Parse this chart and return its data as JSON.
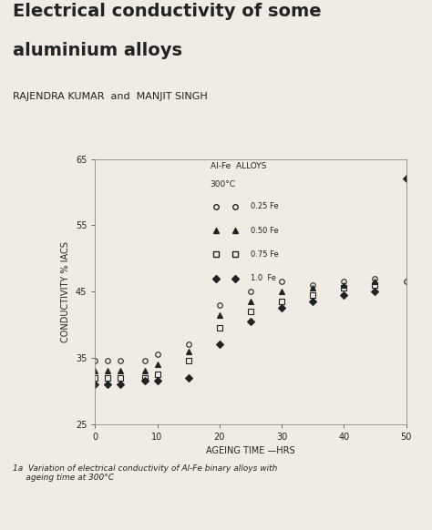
{
  "title_line1": "Electrical conductivity of some",
  "title_line2": "aluminium alloys",
  "authors": "RAJENDRA KUMAR  and  MANJIT SINGH",
  "xlabel": "AGEING TIME —HRS",
  "ylabel": "CONDUCTIVITY % IACS",
  "xlim": [
    0,
    50
  ],
  "ylim": [
    25,
    65
  ],
  "yticks": [
    25,
    35,
    45,
    55,
    65
  ],
  "xticks": [
    0,
    10,
    20,
    30,
    40,
    50
  ],
  "caption": "1a  Variation of electrical conductivity of Al-Fe binary alloys with\n     ageing time at 300°C",
  "legend_header1": "Al-Fe  ALLOYS",
  "legend_header2": "300°C",
  "series": [
    {
      "label": "0.25 Fe",
      "marker": "o",
      "filled": false,
      "x": [
        0,
        2,
        4,
        8,
        10,
        15,
        20,
        25,
        30,
        35,
        40,
        45,
        50
      ],
      "y": [
        34.5,
        34.5,
        34.5,
        34.5,
        35.5,
        37.0,
        43.0,
        45.0,
        46.5,
        46.0,
        46.5,
        47.0,
        46.5
      ]
    },
    {
      "label": "0.50 Fe",
      "marker": "^",
      "filled": true,
      "x": [
        0,
        2,
        4,
        8,
        10,
        15,
        20,
        25,
        30,
        35,
        40,
        45
      ],
      "y": [
        33.0,
        33.0,
        33.0,
        33.0,
        34.0,
        36.0,
        41.5,
        43.5,
        45.0,
        45.5,
        46.0,
        46.5
      ]
    },
    {
      "label": "0.75 Fe",
      "marker": "s",
      "filled": false,
      "x": [
        0,
        2,
        4,
        8,
        10,
        15,
        20,
        25,
        30,
        35,
        40,
        45
      ],
      "y": [
        32.0,
        32.0,
        32.0,
        32.0,
        32.5,
        34.5,
        39.5,
        42.0,
        43.5,
        44.5,
        45.5,
        46.0
      ]
    },
    {
      "label": "1.0  Fe",
      "marker": "D",
      "filled": true,
      "x": [
        0,
        2,
        4,
        8,
        10,
        15,
        20,
        25,
        30,
        35,
        40,
        45,
        50
      ],
      "y": [
        31.0,
        31.0,
        31.0,
        31.5,
        31.5,
        32.0,
        37.0,
        40.5,
        42.5,
        43.5,
        44.5,
        45.0,
        62.0
      ]
    }
  ],
  "bg_color": "#f0ece4",
  "text_color": "#222222"
}
